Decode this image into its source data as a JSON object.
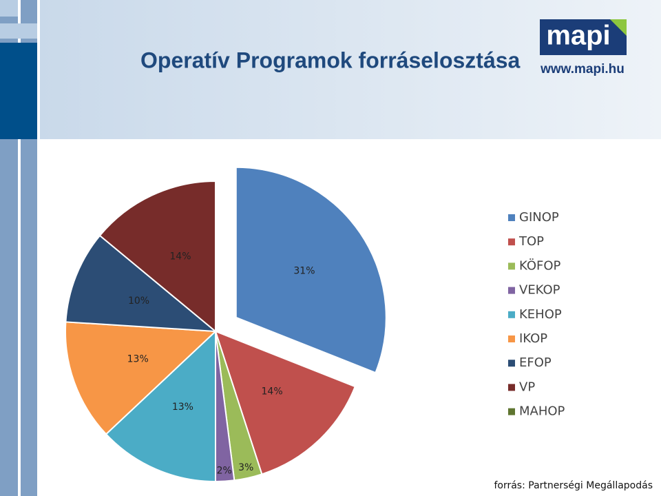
{
  "chart_data": {
    "type": "pie",
    "title": "Operatív Programok forráselosztása",
    "categories": [
      "GINOP",
      "TOP",
      "KÖFOP",
      "VEKOP",
      "KEHOP",
      "IKOP",
      "EFOP",
      "VP",
      "MAHOP"
    ],
    "values": [
      31,
      14,
      3,
      2,
      13,
      13,
      10,
      14,
      0
    ],
    "value_labels": [
      "31%",
      "14%",
      "3%",
      "2%",
      "13%",
      "13%",
      "10%",
      "14%",
      null
    ],
    "colors": [
      "#4f81bd",
      "#c0504d",
      "#9bbb59",
      "#8064a2",
      "#4bacc6",
      "#f79646",
      "#2c4d75",
      "#772c2a",
      "#5f7530"
    ],
    "exploded": [
      "GINOP"
    ],
    "legend": "right"
  },
  "logo": {
    "name": "mapi",
    "url": "www.mapi.hu"
  },
  "source": "forrás: Partnerségi Megállapodás"
}
